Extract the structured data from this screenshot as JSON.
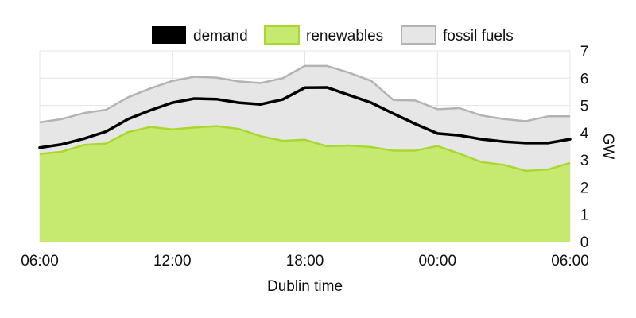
{
  "chart_data": {
    "type": "area",
    "title": "",
    "xlabel": "Dublin time",
    "ylabel": "GW",
    "x_start": "06:00",
    "x_step_minutes": 60,
    "x_ticks": [
      "06:00",
      "12:00",
      "18:00",
      "00:00",
      "06:00"
    ],
    "ylim": [
      0,
      7
    ],
    "y_ticks": [
      0,
      1,
      2,
      3,
      4,
      5,
      6,
      7
    ],
    "y_axis_side": "right",
    "grid": true,
    "legend_position": "top",
    "series": [
      {
        "name": "demand",
        "kind": "line",
        "color": "#000000",
        "values": [
          3.45,
          3.57,
          3.78,
          4.04,
          4.5,
          4.82,
          5.1,
          5.25,
          5.23,
          5.1,
          5.04,
          5.22,
          5.65,
          5.66,
          5.38,
          5.1,
          4.7,
          4.32,
          3.97,
          3.9,
          3.76,
          3.67,
          3.62,
          3.62,
          3.76
        ]
      },
      {
        "name": "renewables",
        "kind": "area",
        "color": "#c6ea70",
        "stroke": "#a8d830",
        "values": [
          3.22,
          3.3,
          3.55,
          3.6,
          4.02,
          4.21,
          4.12,
          4.19,
          4.24,
          4.14,
          3.87,
          3.7,
          3.74,
          3.5,
          3.53,
          3.47,
          3.34,
          3.34,
          3.51,
          3.23,
          2.92,
          2.82,
          2.6,
          2.65,
          2.89
        ]
      },
      {
        "name": "fossil fuels",
        "kind": "area",
        "color": "#e6e6e6",
        "stroke": "#b3b3b3",
        "values": [
          4.38,
          4.5,
          4.72,
          4.84,
          5.3,
          5.62,
          5.9,
          6.05,
          6.02,
          5.88,
          5.82,
          6.0,
          6.45,
          6.45,
          6.2,
          5.9,
          5.2,
          5.18,
          4.86,
          4.9,
          4.63,
          4.5,
          4.42,
          4.6,
          4.6
        ]
      }
    ]
  }
}
